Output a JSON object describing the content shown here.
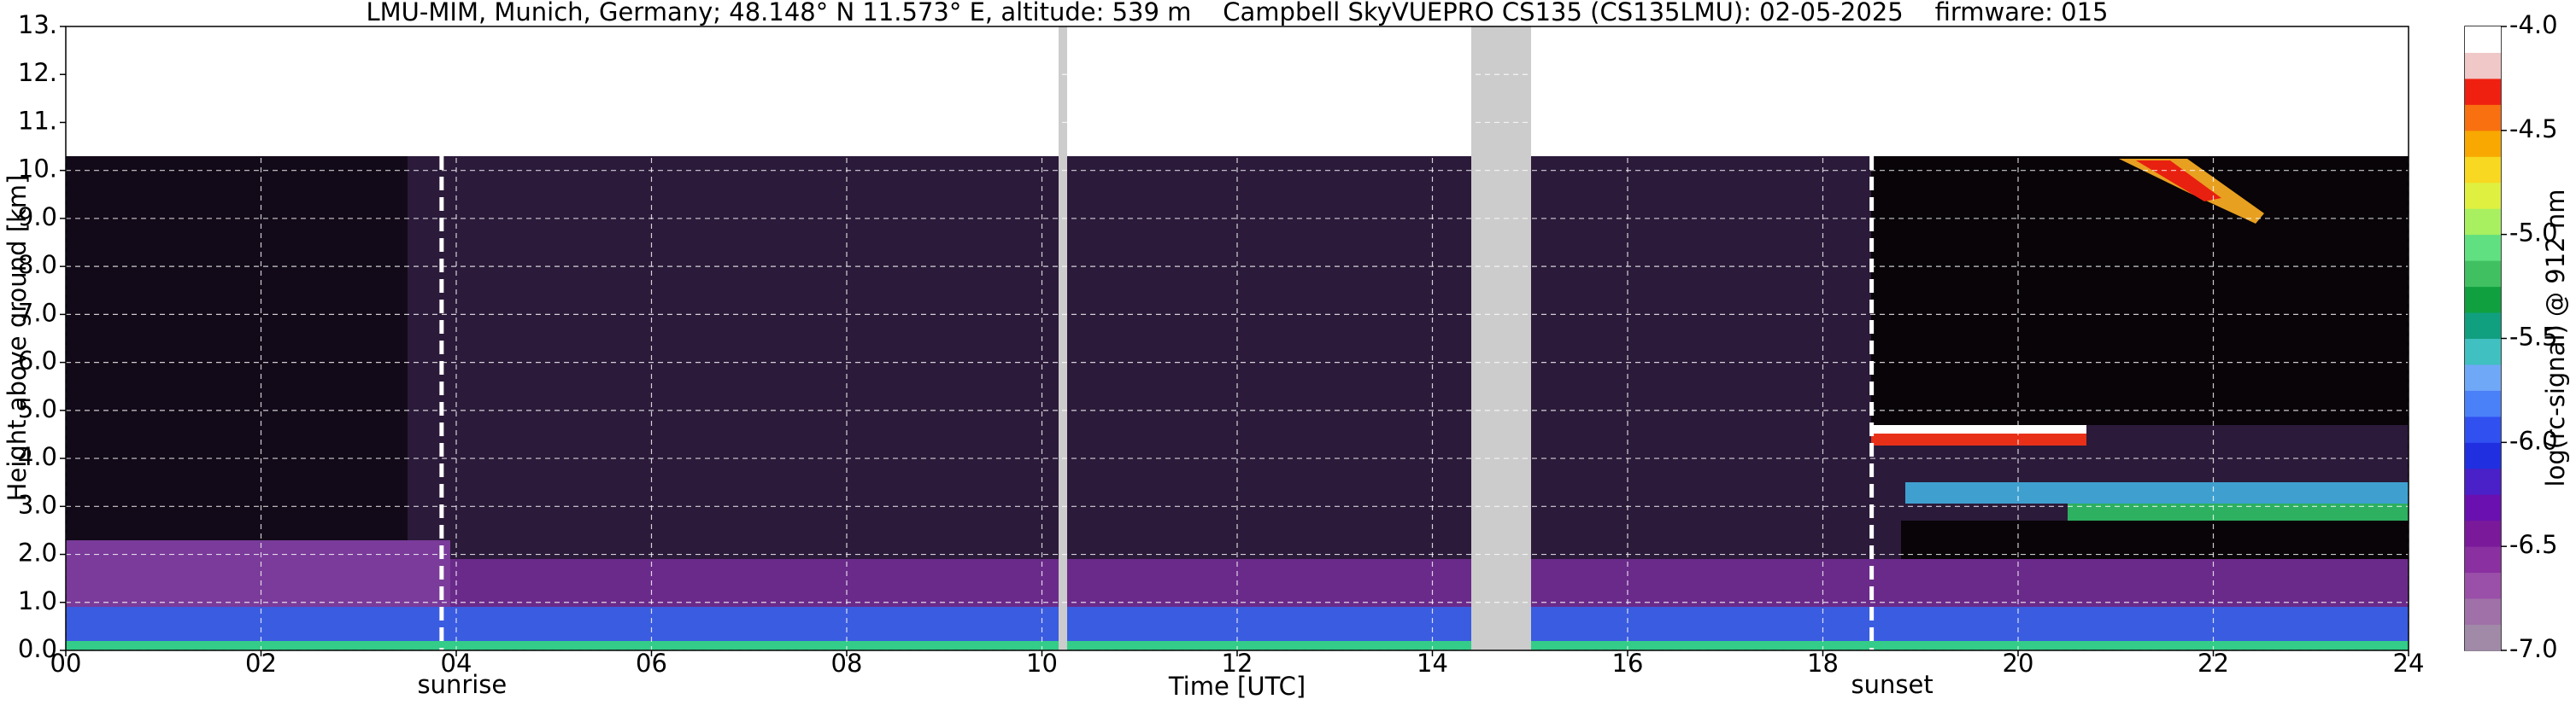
{
  "chart_data": {
    "type": "heatmap",
    "title": "LMU-MIM, Munich, Germany; 48.148° N 11.573° E, altitude: 539 m    Campbell SkyVUEPRO CS135 (CS135LMU): 02-05-2025    firmware: 015",
    "xlabel": "Time [UTC]",
    "ylabel": "Height above ground [km]",
    "xlim": [
      0,
      24
    ],
    "xticks": [
      {
        "value": 0,
        "label": "00"
      },
      {
        "value": 2,
        "label": "02"
      },
      {
        "value": 4,
        "label": "04"
      },
      {
        "value": 6,
        "label": "06"
      },
      {
        "value": 8,
        "label": "08"
      },
      10,
      12,
      14,
      16,
      18,
      20,
      22,
      24
    ],
    "ylim": [
      0,
      13
    ],
    "yticks": [
      {
        "value": 0,
        "label": "0.0"
      },
      {
        "value": 1,
        "label": "1.0"
      },
      {
        "value": 2,
        "label": "2.0"
      },
      {
        "value": 3,
        "label": "3.0"
      },
      {
        "value": 4,
        "label": "4.0"
      },
      {
        "value": 5,
        "label": "5.0"
      },
      {
        "value": 6,
        "label": "6.0"
      },
      {
        "value": 7,
        "label": "7.0"
      },
      {
        "value": 8,
        "label": "8.0"
      },
      {
        "value": 9,
        "label": "9.0"
      },
      {
        "value": 10,
        "label": "10."
      },
      {
        "value": 11,
        "label": "11."
      },
      {
        "value": 12,
        "label": "12."
      },
      {
        "value": 13,
        "label": "13."
      }
    ],
    "grid": true,
    "colorbar_label": "log(rc-signal) @ 912 nm",
    "clim": [
      -7,
      -4
    ],
    "cticks": [
      {
        "value": -4,
        "label": "-4.0"
      },
      -4.5,
      {
        "value": -5,
        "label": "-5.0"
      },
      -5.5,
      {
        "value": -6,
        "label": "-6.0"
      },
      -6.5,
      {
        "value": -7,
        "label": "-7.0"
      }
    ],
    "colorbar_colors": [
      "#a08aa8",
      "#a070a8",
      "#9a50a8",
      "#8a30a0",
      "#7a1a9a",
      "#6a10b0",
      "#4a20c8",
      "#2030e0",
      "#3050f0",
      "#4a80f8",
      "#70a8f8",
      "#40c0c0",
      "#10a080",
      "#10a040",
      "#40c060",
      "#60e080",
      "#a8f060",
      "#e0f040",
      "#f8d820",
      "#f8a800",
      "#f87010",
      "#f02010",
      "#f0c8c8",
      "#ffffff"
    ],
    "annotations": [
      {
        "x": 3.85,
        "text": "sunrise"
      },
      {
        "x": 18.5,
        "text": "sunset"
      }
    ]
  }
}
